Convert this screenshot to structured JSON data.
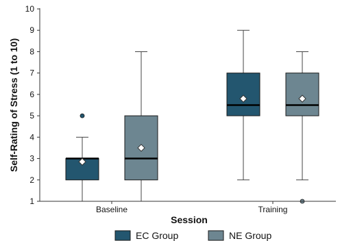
{
  "chart_data": {
    "type": "boxplot",
    "xlabel": "Session",
    "ylabel": "Self-Rating of Stress (1 to 10)",
    "ylim": [
      1,
      10
    ],
    "yticks": [
      1,
      2,
      3,
      4,
      5,
      6,
      7,
      8,
      9,
      10
    ],
    "categories": [
      "Baseline",
      "Training"
    ],
    "grid": false,
    "legend_position": "bottom",
    "series": [
      {
        "name": "EC Group",
        "color": "#23566f",
        "boxes": [
          {
            "category": "Baseline",
            "whisker_low": 1,
            "q1": 2,
            "median": 3,
            "q3": 3,
            "whisker_high": 4,
            "mean": 2.85,
            "outliers": [
              5
            ]
          },
          {
            "category": "Training",
            "whisker_low": 2,
            "q1": 5,
            "median": 5.5,
            "q3": 7,
            "whisker_high": 9,
            "mean": 5.8,
            "outliers": []
          }
        ]
      },
      {
        "name": "NE Group",
        "color": "#6d8691",
        "boxes": [
          {
            "category": "Baseline",
            "whisker_low": 1,
            "q1": 2,
            "median": 3,
            "q3": 5,
            "whisker_high": 8,
            "mean": 3.5,
            "outliers": []
          },
          {
            "category": "Training",
            "whisker_low": 2,
            "q1": 5,
            "median": 5.5,
            "q3": 7,
            "whisker_high": 8,
            "mean": 5.8,
            "outliers": [
              1
            ]
          }
        ]
      }
    ]
  }
}
